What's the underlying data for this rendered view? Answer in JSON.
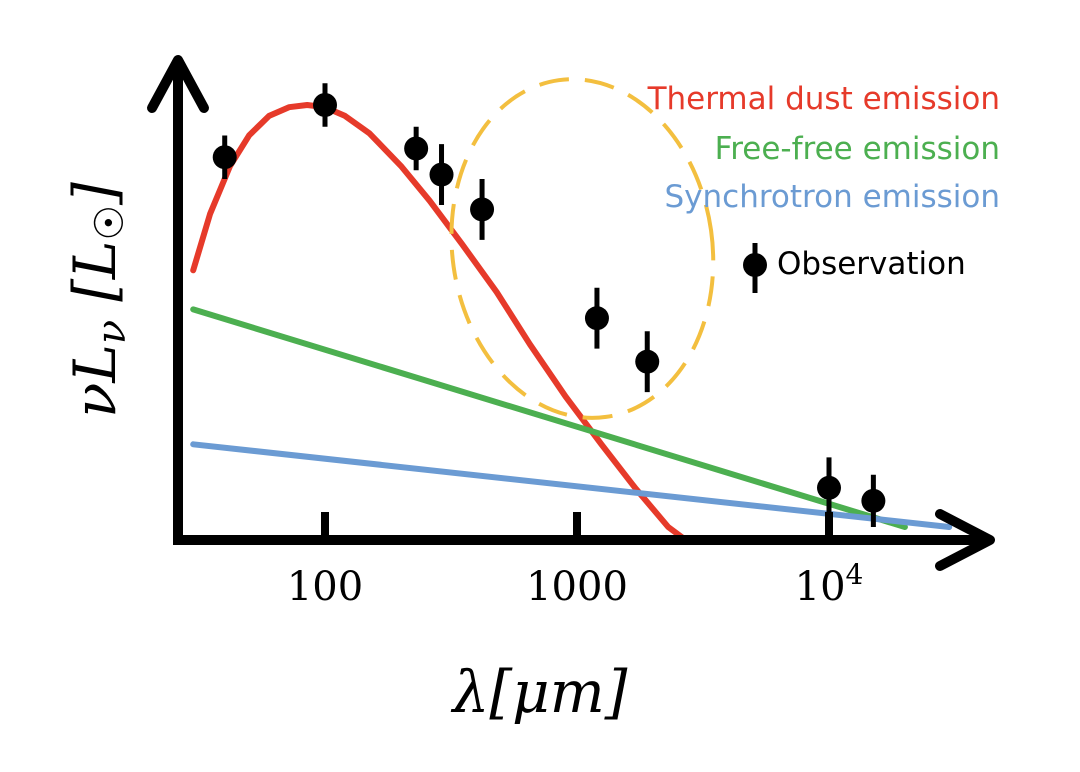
{
  "chart_data": {
    "type": "line",
    "xscale": "log",
    "yscale": "log",
    "xlabel": "λ[μm]",
    "ylabel": "νL",
    "ylabel_sub": "ν",
    "ylabel_units": "[L",
    "ylabel_units_close": "]",
    "xticks": [
      {
        "value": 100,
        "label": "100"
      },
      {
        "value": 1000,
        "label": "1000"
      },
      {
        "value": 10000,
        "label": "10",
        "sup": "4"
      }
    ],
    "xlim": [
      30,
      40000
    ],
    "legend_position": "top-right",
    "series": [
      {
        "name": "Thermal dust emission",
        "color": "#e63a2a",
        "x": [
          30,
          35,
          42,
          50,
          60,
          72,
          85,
          100,
          120,
          150,
          200,
          260,
          350,
          480,
          650,
          900,
          1250,
          1700,
          2300,
          2700
        ],
        "y": [
          0.62,
          0.75,
          0.86,
          0.93,
          0.975,
          0.995,
          1.0,
          0.995,
          0.975,
          0.935,
          0.86,
          0.78,
          0.68,
          0.57,
          0.45,
          0.33,
          0.22,
          0.12,
          0.03,
          0.0
        ]
      },
      {
        "name": "Free-free emission",
        "color": "#4caf50",
        "x": [
          30,
          20000
        ],
        "y": [
          0.53,
          0.03
        ]
      },
      {
        "name": "Synchrotron emission",
        "color": "#6b9bd3",
        "x": [
          30,
          30000
        ],
        "y": [
          0.22,
          0.03
        ]
      }
    ],
    "observations": {
      "name": "Observation",
      "points": [
        {
          "x": 40,
          "y": 0.88,
          "yerr": 0.05
        },
        {
          "x": 100,
          "y": 1.0,
          "yerr": 0.05
        },
        {
          "x": 230,
          "y": 0.9,
          "yerr": 0.05
        },
        {
          "x": 290,
          "y": 0.84,
          "yerr": 0.07
        },
        {
          "x": 420,
          "y": 0.76,
          "yerr": 0.07
        },
        {
          "x": 1200,
          "y": 0.51,
          "yerr": 0.07
        },
        {
          "x": 1900,
          "y": 0.41,
          "yerr": 0.07
        },
        {
          "x": 10000,
          "y": 0.12,
          "yerr": 0.07
        },
        {
          "x": 15000,
          "y": 0.09,
          "yerr": 0.06
        }
      ]
    },
    "annotation": {
      "shape": "dashed-ellipse",
      "color": "#f3bf3f",
      "x_center": 1050,
      "y_center": 0.67
    }
  }
}
